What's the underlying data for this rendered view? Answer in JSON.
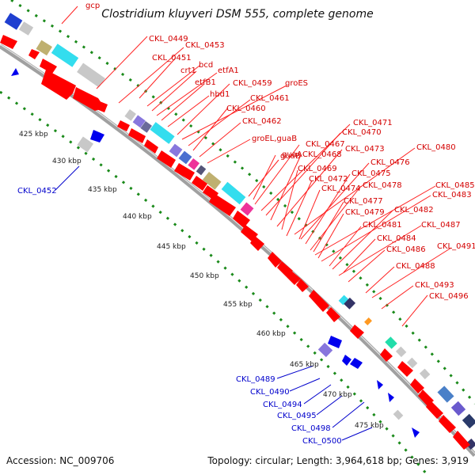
{
  "title": "Clostridium kluyveri DSM 555, complete genome",
  "footer": {
    "accession": "Accession: NC_009706",
    "summary": "Topology: circular; Length: 3,964,618 bp; Genes: 3,919"
  },
  "colors": {
    "forward_gene": "#ff0000",
    "reverse_gene": "#0000ff",
    "forward_label": "#d40000",
    "reverse_label": "#0000cc",
    "backbone": "#999999",
    "tick_dots": "#1a8a1a"
  },
  "kbp_marks": [
    "425 kbp",
    "430 kbp",
    "435 kbp",
    "440 kbp",
    "445 kbp",
    "450 kbp",
    "455 kbp",
    "460 kbp",
    "465 kbp",
    "470 kbp",
    "475 kbp"
  ],
  "forward_labels": [
    "gcp",
    "CKL_0449",
    "CKL_0453",
    "CKL_0451",
    "bcd",
    "crt1",
    "etfA1",
    "etfB1",
    "hbd1",
    "CKL_0459",
    "groES",
    "CKL_0461",
    "CKL_0460",
    "CKL_0462",
    "groEL,guaB",
    "guaB",
    "CKL_0467",
    "CKL_0471",
    "CKL_0470",
    "CKL_0468",
    "guaA",
    "CKL_0473",
    "CKL_0480",
    "CKL_0469",
    "CKL_0476",
    "CKL_0472",
    "CKL_0475",
    "CKL_0478",
    "CKL_0474",
    "CKL_0485",
    "CKL_0477",
    "CKL_0483",
    "CKL_0479",
    "CKL_0482",
    "CKL_0481",
    "CKL_0487",
    "CKL_0484",
    "CKL_0486",
    "CKL_0491",
    "CKL_0488",
    "CKL_0493",
    "CKL_0496"
  ],
  "reverse_labels": [
    "CKL_0452",
    "CKL_0489",
    "CKL_0490",
    "CKL_0494",
    "CKL_0495",
    "CKL_0498",
    "CKL_0500"
  ]
}
